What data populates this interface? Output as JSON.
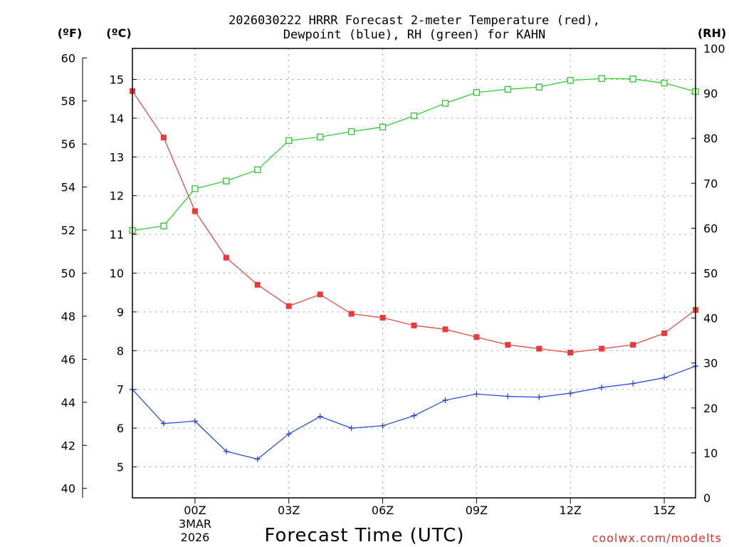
{
  "chart_data": {
    "type": "line",
    "title_line1": "2026030222 HRRR Forecast 2-meter Temperature (red),",
    "title_line2": "Dewpoint (blue), RH (green) for KAHN",
    "xlabel": "Forecast Time (UTC)",
    "credit": "coolwx.com/modelts",
    "left_outer_unit": "(ºF)",
    "left_inner_unit": "(ºC)",
    "right_unit": "(RH)",
    "x_hours": [
      -2,
      -1,
      0,
      1,
      2,
      3,
      4,
      5,
      6,
      7,
      8,
      9,
      10,
      11,
      12,
      13,
      14,
      15,
      16
    ],
    "xlim": [
      -2,
      16
    ],
    "x_ticks": [
      {
        "hour": 0,
        "label": "00Z"
      },
      {
        "hour": 3,
        "label": "03Z"
      },
      {
        "hour": 6,
        "label": "06Z"
      },
      {
        "hour": 9,
        "label": "09Z"
      },
      {
        "hour": 12,
        "label": "12Z"
      },
      {
        "hour": 15,
        "label": "15Z"
      }
    ],
    "date_label_line1": "3MAR",
    "date_label_line2": "2026",
    "celsius_range": [
      4.2,
      15.8
    ],
    "celsius_ticks": [
      5,
      6,
      7,
      8,
      9,
      10,
      11,
      12,
      13,
      14,
      15
    ],
    "fahrenheit_ticks": [
      40,
      42,
      44,
      46,
      48,
      50,
      52,
      54,
      56,
      58,
      60
    ],
    "rh_range": [
      0,
      100
    ],
    "rh_ticks": [
      0,
      10,
      20,
      30,
      40,
      50,
      60,
      70,
      80,
      90,
      100
    ],
    "series": [
      {
        "name": "Temperature",
        "axis": "celsius",
        "color": "#e83a3a",
        "marker": "filled-square",
        "values": [
          14.7,
          13.5,
          11.6,
          10.4,
          9.7,
          9.15,
          9.45,
          8.95,
          8.85,
          8.65,
          8.55,
          8.35,
          8.15,
          8.05,
          7.95,
          8.05,
          8.15,
          8.45,
          9.05
        ]
      },
      {
        "name": "Dewpoint",
        "axis": "celsius",
        "color": "#2040e0",
        "marker": "plus",
        "values": [
          7.0,
          6.12,
          6.18,
          5.4,
          5.2,
          5.85,
          6.3,
          6.0,
          6.06,
          6.32,
          6.72,
          6.88,
          6.82,
          6.8,
          6.9,
          7.05,
          7.15,
          7.3,
          7.6
        ]
      },
      {
        "name": "RH",
        "axis": "rh",
        "color": "#22cc22",
        "marker": "open-square",
        "values": [
          59.5,
          60.5,
          68.8,
          70.5,
          73.0,
          79.5,
          80.3,
          81.5,
          82.5,
          85.0,
          87.8,
          90.2,
          90.9,
          91.4,
          92.9,
          93.3,
          93.2,
          92.3,
          90.4
        ]
      }
    ]
  }
}
